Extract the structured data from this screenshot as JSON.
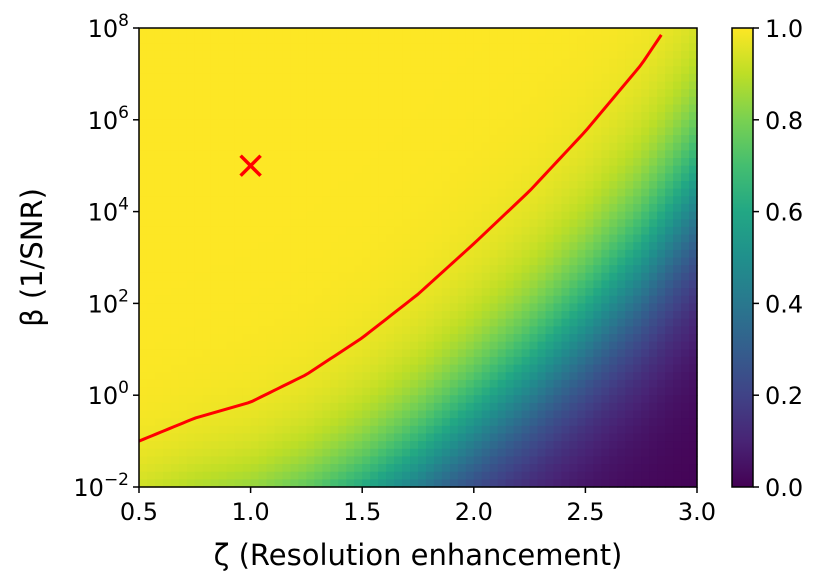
{
  "chart_data": {
    "type": "heatmap",
    "title": "",
    "xlabel": "ζ (Resolution enhancement)",
    "ylabel": "β (1/SNR)",
    "xlim": [
      0.5,
      3.0
    ],
    "ylim_log10": [
      -2,
      8
    ],
    "yscale": "log",
    "x_ticks": [
      0.5,
      1.0,
      1.5,
      2.0,
      2.5,
      3.0
    ],
    "x_tick_labels": [
      "0.5",
      "1.0",
      "1.5",
      "2.0",
      "2.5",
      "3.0"
    ],
    "y_tick_exponents": [
      -2,
      0,
      2,
      4,
      6,
      8
    ],
    "y_tick_labels": [
      {
        "base": "10",
        "exp": "−2"
      },
      {
        "base": "10",
        "exp": "0"
      },
      {
        "base": "10",
        "exp": "2"
      },
      {
        "base": "10",
        "exp": "4"
      },
      {
        "base": "10",
        "exp": "6"
      },
      {
        "base": "10",
        "exp": "8"
      }
    ],
    "colorbar": {
      "range": [
        0.0,
        1.0
      ],
      "ticks": [
        0.0,
        0.2,
        0.4,
        0.6,
        0.8,
        1.0
      ],
      "tick_labels": [
        "0.0",
        "0.2",
        "0.4",
        "0.6",
        "0.8",
        "1.0"
      ],
      "colormap": "viridis"
    },
    "boundary_curve": {
      "color": "#ff0000",
      "x": [
        0.5,
        0.75,
        1.0,
        1.25,
        1.5,
        1.75,
        2.0,
        2.25,
        2.5,
        2.75,
        2.84
      ],
      "log10_y": [
        -1.0,
        -0.5,
        -0.15,
        0.45,
        1.25,
        2.2,
        3.3,
        4.45,
        5.75,
        7.2,
        7.85
      ]
    },
    "marker": {
      "symbol": "x",
      "color": "#ff0000",
      "x": 1.0,
      "log10_y": 5.0
    },
    "grid": false
  }
}
